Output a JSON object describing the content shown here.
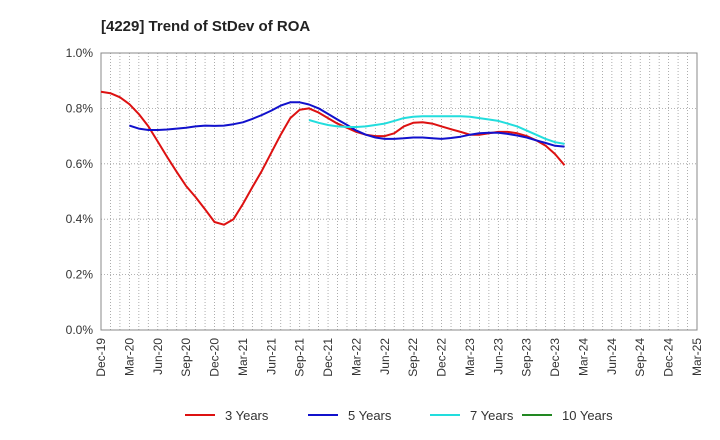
{
  "chart_data": {
    "type": "line",
    "title": "[4229]  Trend of StDev of ROA",
    "xlabel": "",
    "ylabel": "",
    "ylim": [
      0,
      1.0
    ],
    "grid": true,
    "legend_position": "bottom",
    "x_ticks": [
      "Dec-19",
      "Mar-20",
      "Jun-20",
      "Sep-20",
      "Dec-20",
      "Mar-21",
      "Jun-21",
      "Sep-21",
      "Dec-21",
      "Mar-22",
      "Jun-22",
      "Sep-22",
      "Dec-22",
      "Mar-23",
      "Jun-23",
      "Sep-23",
      "Dec-23",
      "Mar-24",
      "Jun-24",
      "Sep-24",
      "Dec-24",
      "Mar-25"
    ],
    "y_ticks": [
      "0.0%",
      "0.2%",
      "0.4%",
      "0.6%",
      "0.8%",
      "1.0%"
    ],
    "series": [
      {
        "name": "3 Years",
        "color": "#dd1111",
        "points": [
          [
            0,
            0.86
          ],
          [
            0.33,
            0.855
          ],
          [
            0.67,
            0.84
          ],
          [
            1,
            0.815
          ],
          [
            1.33,
            0.78
          ],
          [
            1.67,
            0.735
          ],
          [
            2,
            0.68
          ],
          [
            2.33,
            0.625
          ],
          [
            2.67,
            0.57
          ],
          [
            3,
            0.52
          ],
          [
            3.33,
            0.48
          ],
          [
            3.67,
            0.435
          ],
          [
            4,
            0.39
          ],
          [
            4.33,
            0.38
          ],
          [
            4.67,
            0.4
          ],
          [
            5,
            0.455
          ],
          [
            5.33,
            0.515
          ],
          [
            5.67,
            0.575
          ],
          [
            6,
            0.64
          ],
          [
            6.33,
            0.705
          ],
          [
            6.67,
            0.765
          ],
          [
            7,
            0.795
          ],
          [
            7.33,
            0.8
          ],
          [
            7.67,
            0.785
          ],
          [
            8,
            0.765
          ],
          [
            8.33,
            0.745
          ],
          [
            8.67,
            0.73
          ],
          [
            9,
            0.715
          ],
          [
            9.33,
            0.705
          ],
          [
            9.67,
            0.7
          ],
          [
            10,
            0.7
          ],
          [
            10.33,
            0.71
          ],
          [
            10.67,
            0.735
          ],
          [
            11,
            0.748
          ],
          [
            11.33,
            0.75
          ],
          [
            11.67,
            0.745
          ],
          [
            12,
            0.735
          ],
          [
            12.33,
            0.725
          ],
          [
            12.67,
            0.715
          ],
          [
            13,
            0.705
          ],
          [
            13.33,
            0.705
          ],
          [
            13.67,
            0.71
          ],
          [
            14,
            0.715
          ],
          [
            14.33,
            0.715
          ],
          [
            14.67,
            0.71
          ],
          [
            15,
            0.7
          ],
          [
            15.33,
            0.685
          ],
          [
            15.67,
            0.665
          ],
          [
            16,
            0.635
          ],
          [
            16.33,
            0.595
          ]
        ]
      },
      {
        "name": "5 Years",
        "color": "#1111cc",
        "points": [
          [
            1,
            0.738
          ],
          [
            1.33,
            0.727
          ],
          [
            1.67,
            0.722
          ],
          [
            2,
            0.722
          ],
          [
            2.33,
            0.724
          ],
          [
            2.67,
            0.727
          ],
          [
            3,
            0.73
          ],
          [
            3.33,
            0.735
          ],
          [
            3.67,
            0.738
          ],
          [
            4,
            0.737
          ],
          [
            4.33,
            0.738
          ],
          [
            4.67,
            0.743
          ],
          [
            5,
            0.75
          ],
          [
            5.33,
            0.762
          ],
          [
            5.67,
            0.776
          ],
          [
            6,
            0.792
          ],
          [
            6.33,
            0.81
          ],
          [
            6.67,
            0.822
          ],
          [
            7,
            0.822
          ],
          [
            7.33,
            0.814
          ],
          [
            7.67,
            0.8
          ],
          [
            8,
            0.78
          ],
          [
            8.33,
            0.76
          ],
          [
            8.67,
            0.74
          ],
          [
            9,
            0.72
          ],
          [
            9.33,
            0.705
          ],
          [
            9.67,
            0.695
          ],
          [
            10,
            0.69
          ],
          [
            10.33,
            0.69
          ],
          [
            10.67,
            0.692
          ],
          [
            11,
            0.695
          ],
          [
            11.33,
            0.695
          ],
          [
            11.67,
            0.692
          ],
          [
            12,
            0.69
          ],
          [
            12.33,
            0.693
          ],
          [
            12.67,
            0.698
          ],
          [
            13,
            0.705
          ],
          [
            13.33,
            0.71
          ],
          [
            13.67,
            0.712
          ],
          [
            14,
            0.712
          ],
          [
            14.33,
            0.708
          ],
          [
            14.67,
            0.702
          ],
          [
            15,
            0.695
          ],
          [
            15.33,
            0.685
          ],
          [
            15.67,
            0.675
          ],
          [
            16,
            0.665
          ],
          [
            16.33,
            0.662
          ]
        ]
      },
      {
        "name": "7 Years",
        "color": "#22dddd",
        "points": [
          [
            7.33,
            0.758
          ],
          [
            7.67,
            0.748
          ],
          [
            8,
            0.74
          ],
          [
            8.33,
            0.735
          ],
          [
            8.67,
            0.733
          ],
          [
            9,
            0.733
          ],
          [
            9.33,
            0.735
          ],
          [
            9.67,
            0.74
          ],
          [
            10,
            0.745
          ],
          [
            10.33,
            0.755
          ],
          [
            10.67,
            0.765
          ],
          [
            11,
            0.77
          ],
          [
            11.33,
            0.772
          ],
          [
            11.67,
            0.772
          ],
          [
            12,
            0.772
          ],
          [
            12.33,
            0.772
          ],
          [
            12.67,
            0.772
          ],
          [
            13,
            0.77
          ],
          [
            13.33,
            0.765
          ],
          [
            13.67,
            0.76
          ],
          [
            14,
            0.755
          ],
          [
            14.33,
            0.745
          ],
          [
            14.67,
            0.735
          ],
          [
            15,
            0.72
          ],
          [
            15.33,
            0.705
          ],
          [
            15.67,
            0.69
          ],
          [
            16,
            0.678
          ],
          [
            16.33,
            0.672
          ]
        ]
      },
      {
        "name": "10 Years",
        "color": "#228822",
        "points": []
      }
    ]
  }
}
